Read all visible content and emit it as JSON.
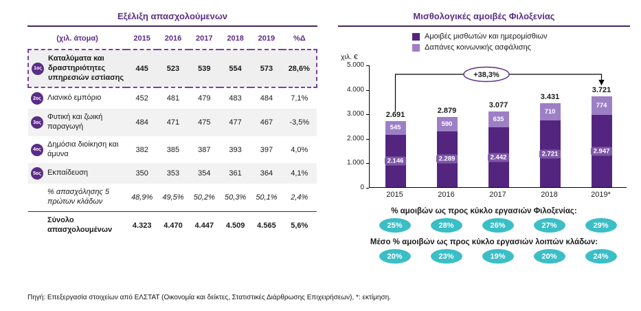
{
  "colors": {
    "accent_purple": "#5B2C86",
    "bar_dark": "#53257E",
    "bar_light": "#9D7FC6",
    "teal": "#3BBEC6"
  },
  "left_panel": {
    "title": "Εξέλιξη απασχολούμενων",
    "table": {
      "header": [
        "(χιλ. άτομα)",
        "2015",
        "2016",
        "2017",
        "2018",
        "2019",
        "%Δ"
      ],
      "rows": [
        {
          "rank": "1ος",
          "label": "Καταλύματα και δραστηριότητες υπηρεσιών εστίασης",
          "values": [
            "445",
            "523",
            "539",
            "554",
            "573",
            "28,6%"
          ],
          "highlight": true
        },
        {
          "rank": "2ος",
          "label": "Λιανικό εμπόριο",
          "values": [
            "452",
            "481",
            "479",
            "483",
            "484",
            "7,1%"
          ]
        },
        {
          "rank": "3ος",
          "label": "Φυτική και ζωική παραγωγή",
          "values": [
            "484",
            "471",
            "475",
            "477",
            "467",
            "-3,5%"
          ]
        },
        {
          "rank": "4ος",
          "label": "Δημόσια διοίκηση και άμυνα",
          "values": [
            "382",
            "385",
            "387",
            "393",
            "397",
            "4,0%"
          ]
        },
        {
          "rank": "5ος",
          "label": "Εκπαίδευση",
          "values": [
            "350",
            "353",
            "354",
            "361",
            "364",
            "4,1%"
          ]
        },
        {
          "rank": null,
          "label": "% απασχόλησης 5 πρώτων κλάδων",
          "values": [
            "48,9%",
            "49,5%",
            "50,2%",
            "50,3%",
            "50,1%",
            "2,4%"
          ],
          "italic": true
        },
        {
          "rank": null,
          "label": "Σύνολο απασχολουμένων",
          "values": [
            "4.323",
            "4.470",
            "4.447",
            "4.509",
            "4.565",
            "5,6%"
          ],
          "total": true
        }
      ]
    }
  },
  "right_panel": {
    "title": "Μισθολογικές αμοιβές Φιλοξενίας",
    "legend": [
      {
        "label": "Αμοιβές μισθωτών και ημερομίσθιων",
        "color": "#53257E"
      },
      {
        "label": "Δαπάνες κοινωνικής ασφάλισης",
        "color": "#9D7FC6"
      }
    ],
    "pct_rows": [
      {
        "label": "% αμοιβών ως προς κύκλο εργασιών Φιλοξενίας:",
        "values": [
          "25%",
          "28%",
          "26%",
          "27%",
          "29%"
        ]
      },
      {
        "label": "Μέσο % αμοιβών ως προς κύκλο εργασιών λοιπών κλάδων:",
        "values": [
          "20%",
          "23%",
          "19%",
          "20%",
          "24%"
        ]
      }
    ]
  },
  "chart_data": {
    "type": "bar",
    "stacked": true,
    "title": "Μισθολογικές αμοιβές Φιλοξενίας",
    "categories": [
      "2015",
      "2016",
      "2017",
      "2018",
      "2019*"
    ],
    "series": [
      {
        "name": "Αμοιβές μισθωτών και ημερομίσθιων",
        "color": "#53257E",
        "values": [
          2146,
          2289,
          2442,
          2721,
          2947
        ],
        "labels": [
          "2.146",
          "2.289",
          "2.442",
          "2.721",
          "2.947"
        ]
      },
      {
        "name": "Δαπάνες κοινωνικής ασφάλισης",
        "color": "#9D7FC6",
        "values": [
          545,
          590,
          635,
          710,
          774
        ],
        "labels": [
          "545",
          "590",
          "635",
          "710",
          "774"
        ]
      }
    ],
    "totals": [
      2691,
      2879,
      3077,
      3431,
      3721
    ],
    "total_labels": [
      "2.691",
      "2.879",
      "3.077",
      "3.431",
      "3.721"
    ],
    "ylabel": "χιλ. €",
    "ylim": [
      0,
      5000
    ],
    "yticks": [
      {
        "v": 0,
        "label": "0"
      },
      {
        "v": 1000,
        "label": "1.000"
      },
      {
        "v": 2000,
        "label": "2.000"
      },
      {
        "v": 3000,
        "label": "3.000"
      },
      {
        "v": 4000,
        "label": "4.000"
      },
      {
        "v": 5000,
        "label": "5.000"
      }
    ],
    "annotation": "+38,3%",
    "legend_position": "top",
    "grid": false
  },
  "footer": "Πηγή: Επεξεργασία στοιχείων από ΕΛΣΤΑΤ (Οικονομία και δείκτες, Στατιστικές Διάρθρωσης Επιχειρήσεων), *: εκτίμηση."
}
